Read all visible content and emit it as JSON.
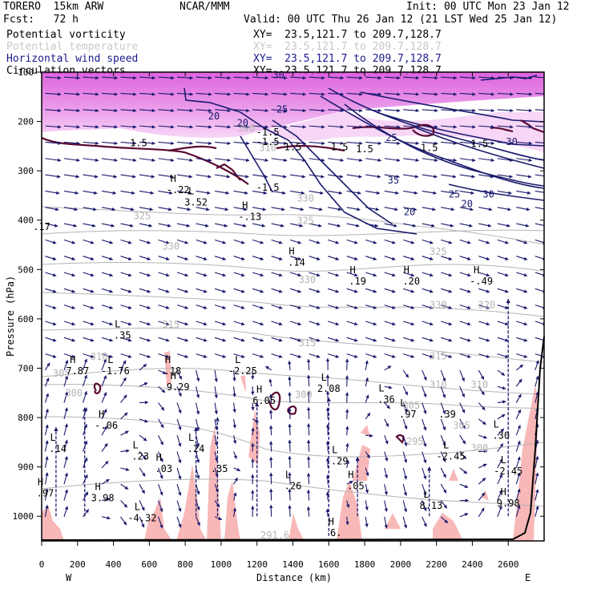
{
  "header": {
    "model": "TORERO  15km ARW",
    "org": "NCAR/MMM",
    "init": "Init: 00 UTC Mon 23 Jan 12",
    "fcst": "Fcst:   72 h",
    "valid": "Valid: 00 UTC Thu 26 Jan 12 (21 LST Wed 25 Jan 12)"
  },
  "legend": [
    {
      "label": "Potential vorticity",
      "xy": "XY=  23.5,121.7 to 209.7,128.7",
      "color": "#000000"
    },
    {
      "label": "Potential temperature",
      "xy": "XY=  23.5,121.7 to 209.7,128.7",
      "color": "#c8c8c8"
    },
    {
      "label": "Horizontal wind speed",
      "xy": "XY=  23.5,121.7 to 209.7,128.7",
      "color": "#1a1a8c"
    },
    {
      "label": "Circulation vectors",
      "xy": "XY=  23.5,121.7 to 209.7,128.7",
      "color": "#000000"
    }
  ],
  "colors": {
    "pv_fill": "#e060e0",
    "pv_fill_light": "#f0b0f0",
    "rh_fill": "#f8b8b8",
    "theta": "#b4b4b4",
    "wind": "#1a1a6e",
    "pv_line": "#5a0a30"
  },
  "chart_data": {
    "type": "cross-section",
    "xlabel": "Distance (km)",
    "ylabel": "Pressure (hPa)",
    "x_ticks": [
      "0",
      "200",
      "400",
      "600",
      "800",
      "1000",
      "1200",
      "1400",
      "1600",
      "1800",
      "2000",
      "2200",
      "2400",
      "2600"
    ],
    "x_tick_values": [
      0,
      200,
      400,
      600,
      800,
      1000,
      1200,
      1400,
      1600,
      1800,
      2000,
      2200,
      2400,
      2600
    ],
    "y_ticks": [
      "100",
      "200",
      "300",
      "400",
      "500",
      "600",
      "700",
      "800",
      "900",
      "1000"
    ],
    "y_tick_values": [
      100,
      200,
      300,
      400,
      500,
      600,
      700,
      800,
      900,
      1000
    ],
    "xlim": [
      0,
      2800
    ],
    "ylim": [
      1050,
      100
    ],
    "x_endpoints": {
      "left": "W",
      "right": "E"
    },
    "theta_contours": [
      {
        "level": "300",
        "x": 1140,
        "p": 220
      },
      {
        "level": "310",
        "x": 1260,
        "p": 260
      },
      {
        "level": "330",
        "x": 1470,
        "p": 362
      },
      {
        "level": "325",
        "x": 1470,
        "p": 408
      },
      {
        "level": "325",
        "x": 560,
        "p": 398
      },
      {
        "level": "330",
        "x": 720,
        "p": 460
      },
      {
        "level": "325",
        "x": 2210,
        "p": 470
      },
      {
        "level": "330",
        "x": 1480,
        "p": 527
      },
      {
        "level": "330",
        "x": 2210,
        "p": 578
      },
      {
        "level": "320",
        "x": 2480,
        "p": 578
      },
      {
        "level": "315",
        "x": 720,
        "p": 618
      },
      {
        "level": "315",
        "x": 1480,
        "p": 655
      },
      {
        "level": "315",
        "x": 2210,
        "p": 682
      },
      {
        "level": "310",
        "x": 320,
        "p": 683
      },
      {
        "level": "305",
        "x": 110,
        "p": 717
      },
      {
        "level": "310",
        "x": 2210,
        "p": 740
      },
      {
        "level": "310",
        "x": 2440,
        "p": 740
      },
      {
        "level": "300",
        "x": 180,
        "p": 757
      },
      {
        "level": "300",
        "x": 1460,
        "p": 760
      },
      {
        "level": "305",
        "x": 2060,
        "p": 782
      },
      {
        "level": "305",
        "x": 2340,
        "p": 823
      },
      {
        "level": "295",
        "x": 2080,
        "p": 855
      },
      {
        "level": "300",
        "x": 2440,
        "p": 868
      },
      {
        "level": "291.6",
        "x": 1300,
        "p": 1045
      }
    ],
    "wind_speed_contours": [
      {
        "level": "30",
        "x": 1320,
        "p": 112
      },
      {
        "level": "25",
        "x": 1340,
        "p": 182
      },
      {
        "level": "20",
        "x": 960,
        "p": 196
      },
      {
        "level": "20",
        "x": 1120,
        "p": 210
      },
      {
        "level": "25",
        "x": 1950,
        "p": 240
      },
      {
        "level": "35",
        "x": 1960,
        "p": 326
      },
      {
        "level": "25",
        "x": 2300,
        "p": 354
      },
      {
        "level": "30",
        "x": 2490,
        "p": 354
      },
      {
        "level": "30",
        "x": 2620,
        "p": 248
      },
      {
        "level": "20",
        "x": 2050,
        "p": 390
      },
      {
        "level": "20",
        "x": 2370,
        "p": 374
      }
    ],
    "pv_labels": [
      {
        "text": "1.5",
        "x": 540,
        "p": 250
      },
      {
        "text": "-1.5",
        "x": 1260,
        "p": 248
      },
      {
        "text": "1.5",
        "x": 1400,
        "p": 258
      },
      {
        "text": "1.5",
        "x": 1660,
        "p": 258
      },
      {
        "text": "1.5",
        "x": 1800,
        "p": 262
      },
      {
        "text": "1.5",
        "x": 2160,
        "p": 260
      },
      {
        "text": "1.5",
        "x": 2440,
        "p": 252
      },
      {
        "text": "-1.5",
        "x": 1260,
        "p": 340
      },
      {
        "text": "-1.5",
        "x": 1260,
        "p": 228
      }
    ],
    "extrema": [
      {
        "kind": "H",
        "value": "-.22",
        "x": 760,
        "p": 345
      },
      {
        "kind": "L",
        "value": "3.52",
        "x": 860,
        "p": 370
      },
      {
        "kind": "H",
        "value": "-.13",
        "x": 1160,
        "p": 400
      },
      {
        "kind": "",
        "value": ".17",
        "x": 0,
        "p": 420
      },
      {
        "kind": "H",
        "value": ".14",
        "x": 1420,
        "p": 492
      },
      {
        "kind": "H",
        "value": ".19",
        "x": 1760,
        "p": 530
      },
      {
        "kind": "H",
        "value": ".20",
        "x": 2060,
        "p": 530
      },
      {
        "kind": "H",
        "value": "-.49",
        "x": 2450,
        "p": 530
      },
      {
        "kind": "L",
        "value": ".35",
        "x": 450,
        "p": 640
      },
      {
        "kind": "H",
        "value": "7.87",
        "x": 200,
        "p": 712
      },
      {
        "kind": "L",
        "value": "-1.76",
        "x": 410,
        "p": 712
      },
      {
        "kind": "H",
        "value": ".18",
        "x": 730,
        "p": 712
      },
      {
        "kind": "L",
        "value": "-2.25",
        "x": 1120,
        "p": 712
      },
      {
        "kind": "H",
        "value": "9.29",
        "x": 760,
        "p": 745
      },
      {
        "kind": "L",
        "value": "2.08",
        "x": 1600,
        "p": 748
      },
      {
        "kind": "H",
        "value": "6.05",
        "x": 1240,
        "p": 772
      },
      {
        "kind": "L",
        "value": ".36",
        "x": 1920,
        "p": 770
      },
      {
        "kind": "L",
        "value": ".97",
        "x": 2040,
        "p": 800
      },
      {
        "kind": "",
        "value": ".39",
        "x": 2260,
        "p": 800
      },
      {
        "kind": "H",
        "value": "-.06",
        "x": 360,
        "p": 823
      },
      {
        "kind": "L",
        "value": ".14",
        "x": 90,
        "p": 870
      },
      {
        "kind": "L",
        "value": ".24",
        "x": 860,
        "p": 870
      },
      {
        "kind": "L",
        "value": ".30",
        "x": 2560,
        "p": 843
      },
      {
        "kind": "L",
        "value": "-2.45",
        "x": 2280,
        "p": 885
      },
      {
        "kind": "L",
        "value": ".23",
        "x": 550,
        "p": 885
      },
      {
        "kind": "H",
        "value": ".03",
        "x": 680,
        "p": 910
      },
      {
        "kind": "",
        "value": ".35",
        "x": 990,
        "p": 910
      },
      {
        "kind": "L",
        "value": ".29",
        "x": 1660,
        "p": 895
      },
      {
        "kind": "L",
        "value": "-2.45",
        "x": 2600,
        "p": 915
      },
      {
        "kind": "L",
        "value": ".26",
        "x": 1400,
        "p": 945
      },
      {
        "kind": "H",
        "value": ".05",
        "x": 1750,
        "p": 945
      },
      {
        "kind": "H",
        "value": ".97",
        "x": 20,
        "p": 960
      },
      {
        "kind": "H",
        "value": "3.98",
        "x": 340,
        "p": 970
      },
      {
        "kind": "L",
        "value": "8.13",
        "x": 2170,
        "p": 985
      },
      {
        "kind": "H",
        "value": "9.98",
        "x": 2600,
        "p": 980
      },
      {
        "kind": "L",
        "value": "-4.32",
        "x": 560,
        "p": 1010
      },
      {
        "kind": "H",
        "value": "6.",
        "x": 1640,
        "p": 1040
      }
    ]
  }
}
